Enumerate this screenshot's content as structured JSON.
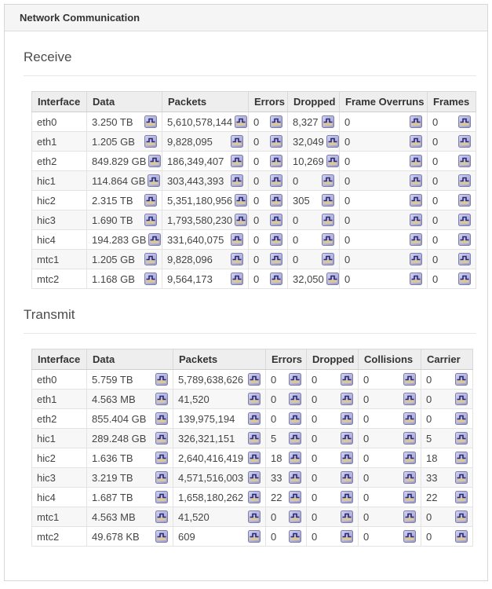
{
  "panel": {
    "title": "Network Communication"
  },
  "icons": {
    "cell_icon": "chart-history-icon"
  },
  "colors": {
    "panel_border": "#d7d7d7",
    "heading_bg": "#f5f5f5",
    "table_header_bg": "#eeeeee",
    "row_stripe": "#f7f7f7",
    "icon_face": "#aeaedd",
    "icon_line": "#28287a",
    "icon_fill": "#d8c8a0"
  },
  "sections": [
    {
      "heading": "Receive",
      "columns": [
        "Interface",
        "Data",
        "Packets",
        "Errors",
        "Dropped",
        "Frame Overruns",
        "Frames"
      ],
      "rows": [
        {
          "interface": "eth0",
          "values": [
            "3.250 TB",
            "5,610,578,144",
            "0",
            "8,327",
            "0",
            "0"
          ]
        },
        {
          "interface": "eth1",
          "values": [
            "1.205 GB",
            "9,828,095",
            "0",
            "32,049",
            "0",
            "0"
          ]
        },
        {
          "interface": "eth2",
          "values": [
            "849.829 GB",
            "186,349,407",
            "0",
            "10,269",
            "0",
            "0"
          ]
        },
        {
          "interface": "hic1",
          "values": [
            "114.864 GB",
            "303,443,393",
            "0",
            "0",
            "0",
            "0"
          ]
        },
        {
          "interface": "hic2",
          "values": [
            "2.315 TB",
            "5,351,180,956",
            "0",
            "305",
            "0",
            "0"
          ]
        },
        {
          "interface": "hic3",
          "values": [
            "1.690 TB",
            "1,793,580,230",
            "0",
            "0",
            "0",
            "0"
          ]
        },
        {
          "interface": "hic4",
          "values": [
            "194.283 GB",
            "331,640,075",
            "0",
            "0",
            "0",
            "0"
          ]
        },
        {
          "interface": "mtc1",
          "values": [
            "1.205 GB",
            "9,828,096",
            "0",
            "0",
            "0",
            "0"
          ]
        },
        {
          "interface": "mtc2",
          "values": [
            "1.168 GB",
            "9,564,173",
            "0",
            "32,050",
            "0",
            "0"
          ]
        }
      ]
    },
    {
      "heading": "Transmit",
      "columns": [
        "Interface",
        "Data",
        "Packets",
        "Errors",
        "Dropped",
        "Collisions",
        "Carrier"
      ],
      "rows": [
        {
          "interface": "eth0",
          "values": [
            "5.759 TB",
            "5,789,638,626",
            "0",
            "0",
            "0",
            "0"
          ]
        },
        {
          "interface": "eth1",
          "values": [
            "4.563 MB",
            "41,520",
            "0",
            "0",
            "0",
            "0"
          ]
        },
        {
          "interface": "eth2",
          "values": [
            "855.404 GB",
            "139,975,194",
            "0",
            "0",
            "0",
            "0"
          ]
        },
        {
          "interface": "hic1",
          "values": [
            "289.248 GB",
            "326,321,151",
            "5",
            "0",
            "0",
            "5"
          ]
        },
        {
          "interface": "hic2",
          "values": [
            "1.636 TB",
            "2,640,416,419",
            "18",
            "0",
            "0",
            "18"
          ]
        },
        {
          "interface": "hic3",
          "values": [
            "3.219 TB",
            "4,571,516,003",
            "33",
            "0",
            "0",
            "33"
          ]
        },
        {
          "interface": "hic4",
          "values": [
            "1.687 TB",
            "1,658,180,262",
            "22",
            "0",
            "0",
            "22"
          ]
        },
        {
          "interface": "mtc1",
          "values": [
            "4.563 MB",
            "41,520",
            "0",
            "0",
            "0",
            "0"
          ]
        },
        {
          "interface": "mtc2",
          "values": [
            "49.678 KB",
            "609",
            "0",
            "0",
            "0",
            "0"
          ]
        }
      ]
    }
  ]
}
